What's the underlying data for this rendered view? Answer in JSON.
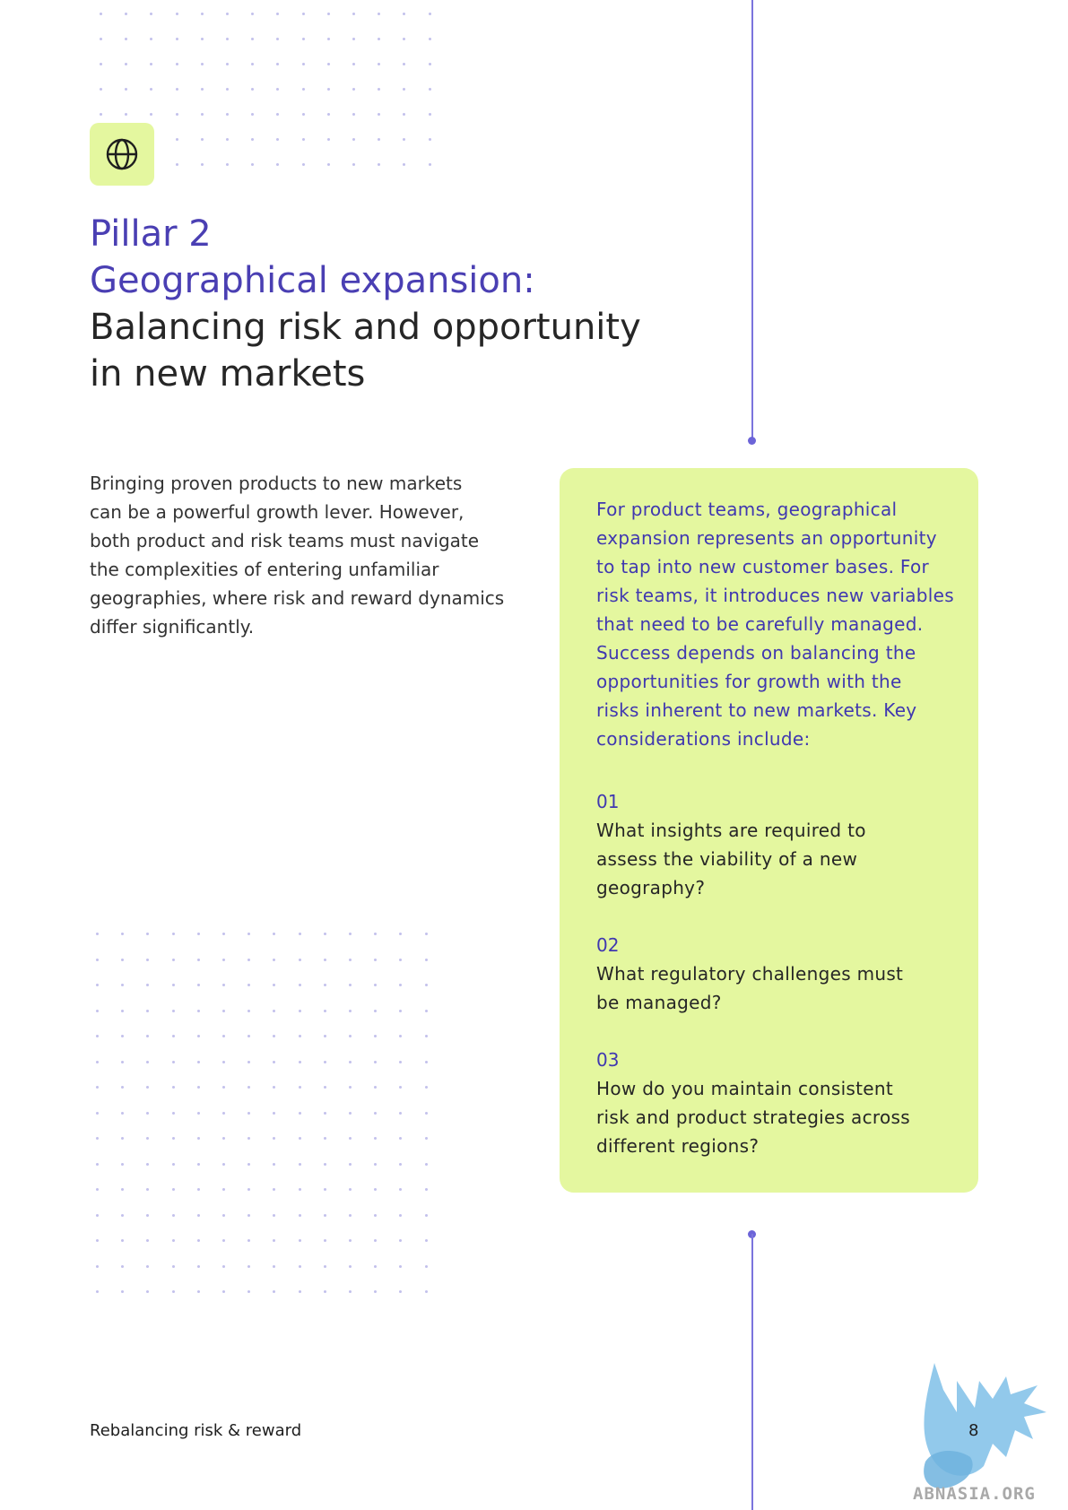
{
  "header": {
    "icon": "globe-icon",
    "pillar": "Pillar 2",
    "subtitle": "Geographical expansion:",
    "heading_line1": "Balancing risk and opportunity",
    "heading_line2": "in new markets"
  },
  "intro": {
    "lines": [
      "Bringing proven products to new markets",
      "can be a powerful growth lever. However,",
      "both product and risk teams must navigate",
      "the complexities of entering unfamiliar",
      "geographies, where risk and reward dynamics",
      "differ significantly."
    ]
  },
  "card": {
    "lead_lines": [
      "For product teams, geographical",
      "expansion represents an opportunity",
      "to tap into new customer bases. For",
      "risk teams, it introduces new variables",
      "that need to be carefully managed.",
      "Success depends on balancing the",
      "opportunities for growth with the",
      "risks inherent to new markets. Key",
      "considerations include:"
    ],
    "questions": [
      {
        "number": "01",
        "lines": [
          "What insights are required to",
          "assess the viability of a new",
          "geography?"
        ]
      },
      {
        "number": "02",
        "lines": [
          "What regulatory challenges must",
          "be managed?"
        ]
      },
      {
        "number": "03",
        "lines": [
          "How do you maintain consistent",
          "risk and product strategies across",
          "different regions?"
        ]
      }
    ]
  },
  "footer": {
    "doc_title": "Rebalancing risk & reward",
    "page_number": "8"
  },
  "watermark": {
    "text": "ABNASIA.ORG"
  },
  "colors": {
    "accent_purple": "#4a3fb3",
    "card_green": "#e4f79f",
    "line_purple": "#7b74dd"
  }
}
